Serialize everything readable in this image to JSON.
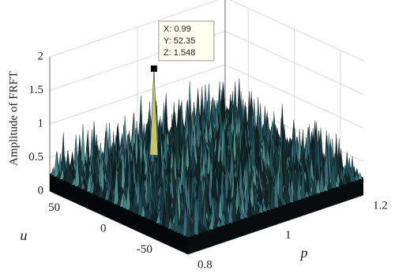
{
  "chart_data": {
    "type": "surface3d",
    "zlabel": "Amplitude of FRFT",
    "xlabel": "p",
    "ylabel": "u",
    "xlim": [
      0.8,
      1.2
    ],
    "xticks": [
      0.8,
      1,
      1.2
    ],
    "ylim": [
      -75,
      75
    ],
    "yticks": [
      -50,
      0,
      50
    ],
    "zlim": [
      0,
      2
    ],
    "zticks": [
      0,
      0.5,
      1,
      1.5,
      2
    ],
    "grid": true,
    "datatip": {
      "x": 0.99,
      "y": 52.35,
      "z": 1.548,
      "labels": [
        "X: 0.99",
        "Y: 52.35",
        "Z: 1.548"
      ]
    }
  }
}
